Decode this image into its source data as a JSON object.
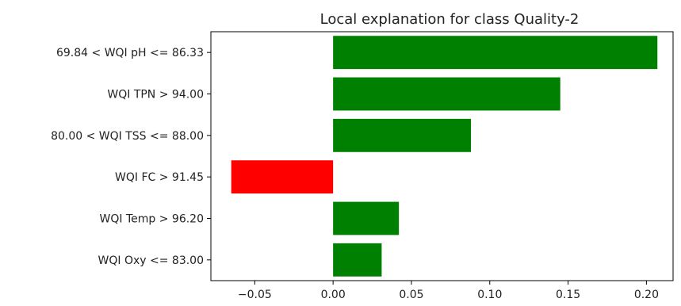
{
  "chart_data": {
    "type": "bar",
    "orientation": "horizontal",
    "title": "Local explanation for class Quality-2",
    "xlabel": "",
    "ylabel": "",
    "categories": [
      "69.84 < WQI pH <= 86.33",
      "WQI TPN > 94.00",
      "80.00 < WQI TSS <= 88.00",
      "WQI FC > 91.45",
      "WQI Temp > 96.20",
      "WQI Oxy <= 83.00"
    ],
    "values": [
      0.207,
      0.145,
      0.088,
      -0.065,
      0.042,
      0.031
    ],
    "xlim": [
      -0.078,
      0.217
    ],
    "xticks": [
      -0.05,
      0.0,
      0.05,
      0.1,
      0.15,
      0.2
    ],
    "xtick_labels": [
      "−0.05",
      "0.00",
      "0.05",
      "0.10",
      "0.15",
      "0.20"
    ],
    "grid": false,
    "colors": {
      "positive": "#008000",
      "negative": "#ff0000",
      "axis": "#000000"
    }
  }
}
